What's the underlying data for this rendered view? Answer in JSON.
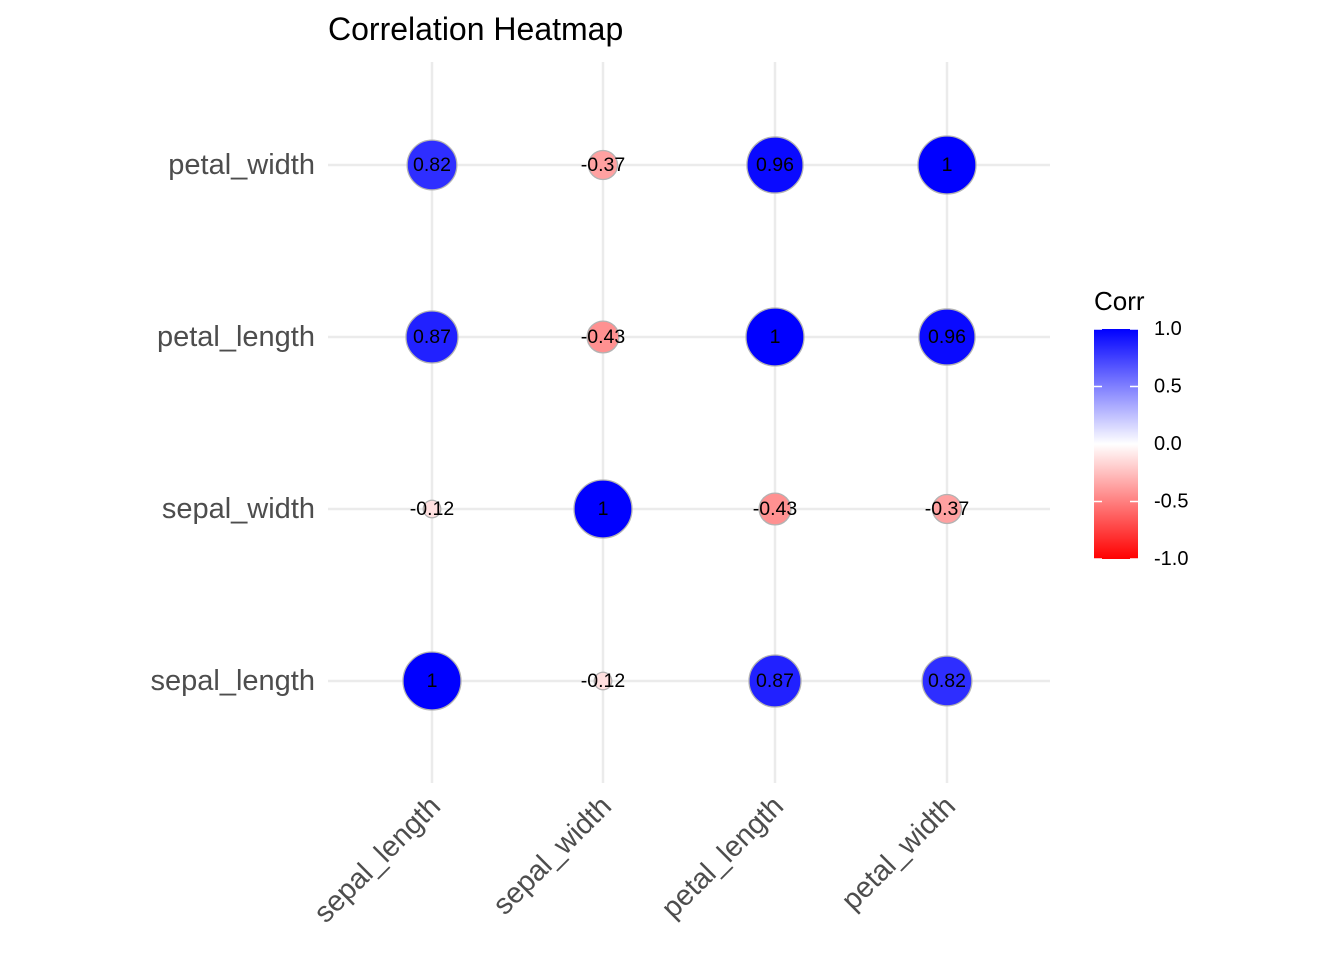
{
  "chart_data": {
    "type": "heatmap",
    "title": "Correlation Heatmap",
    "variables": [
      "sepal_length",
      "sepal_width",
      "petal_length",
      "petal_width"
    ],
    "matrix": [
      [
        1,
        -0.12,
        0.87,
        0.82
      ],
      [
        -0.12,
        1,
        -0.43,
        -0.37
      ],
      [
        0.87,
        -0.43,
        1,
        0.96
      ],
      [
        0.82,
        -0.37,
        0.96,
        1
      ]
    ],
    "labels": [
      [
        "1",
        "-0.12",
        "0.87",
        "0.82"
      ],
      [
        "-0.12",
        "1",
        "-0.43",
        "-0.37"
      ],
      [
        "0.87",
        "-0.43",
        "1",
        "0.96"
      ],
      [
        "0.82",
        "-0.37",
        "0.96",
        "1"
      ]
    ],
    "legend": {
      "title": "Corr",
      "position": "right",
      "range": [
        -1,
        1
      ],
      "ticks": [
        "1.0",
        "0.5",
        "0.0",
        "-0.5",
        "-1.0"
      ],
      "tick_values": [
        1,
        0.5,
        0,
        -0.5,
        -1
      ],
      "colors": {
        "low": "#ff0000",
        "mid": "#ffffff",
        "high": "#0000ff"
      }
    },
    "grid": true,
    "marker": "circle sized by |corr|"
  }
}
